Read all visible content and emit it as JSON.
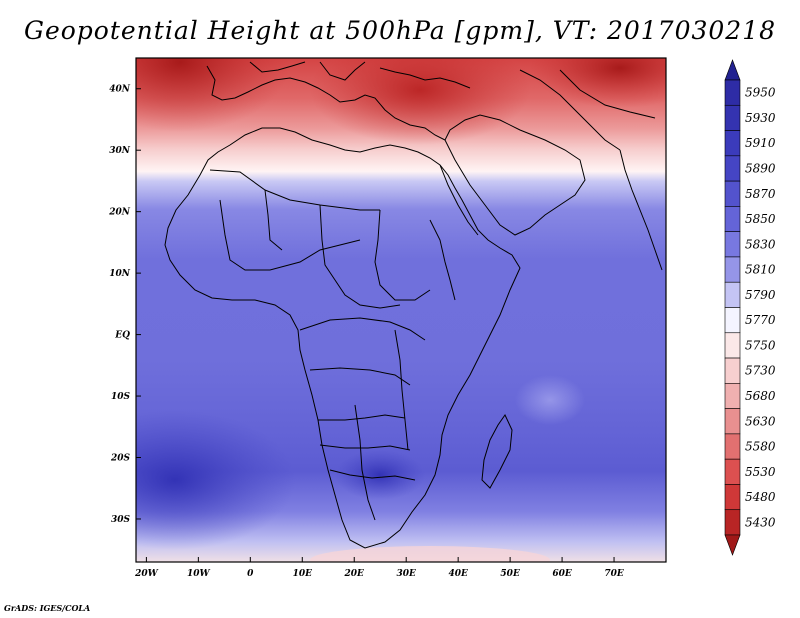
{
  "title": "Geopotential Height at 500hPa [gpm], VT: 2017030218",
  "credit": "GrADS: IGES/COLA",
  "map": {
    "lon_range": [
      -22,
      80
    ],
    "lat_range": [
      -37,
      45
    ],
    "lon_ticks": [
      {
        "value": -20,
        "label": "20W"
      },
      {
        "value": -10,
        "label": "10W"
      },
      {
        "value": 0,
        "label": "0"
      },
      {
        "value": 10,
        "label": "10E"
      },
      {
        "value": 20,
        "label": "20E"
      },
      {
        "value": 30,
        "label": "30E"
      },
      {
        "value": 40,
        "label": "40E"
      },
      {
        "value": 50,
        "label": "50E"
      },
      {
        "value": 60,
        "label": "60E"
      },
      {
        "value": 70,
        "label": "70E"
      }
    ],
    "lat_ticks": [
      {
        "value": 40,
        "label": "40N"
      },
      {
        "value": 30,
        "label": "30N"
      },
      {
        "value": 20,
        "label": "20N"
      },
      {
        "value": 10,
        "label": "10N"
      },
      {
        "value": 0,
        "label": "EQ"
      },
      {
        "value": -10,
        "label": "10S"
      },
      {
        "value": -20,
        "label": "20S"
      },
      {
        "value": -30,
        "label": "30S"
      }
    ]
  },
  "legend": {
    "levels": [
      {
        "label": "5950",
        "color": "#2e2ca6"
      },
      {
        "label": "5930",
        "color": "#3433b0"
      },
      {
        "label": "5910",
        "color": "#3b3bbb"
      },
      {
        "label": "5890",
        "color": "#4545c4"
      },
      {
        "label": "5870",
        "color": "#5353cd"
      },
      {
        "label": "5850",
        "color": "#6464d8"
      },
      {
        "label": "5830",
        "color": "#7878e0"
      },
      {
        "label": "5810",
        "color": "#9595e8"
      },
      {
        "label": "5790",
        "color": "#c4c4f4"
      },
      {
        "label": "5770",
        "color": "#f4f4ff"
      },
      {
        "label": "5750",
        "color": "#fbe8e8"
      },
      {
        "label": "5730",
        "color": "#f7cfcf"
      },
      {
        "label": "5680",
        "color": "#f0b0b0"
      },
      {
        "label": "5630",
        "color": "#e99090"
      },
      {
        "label": "5580",
        "color": "#e27070"
      },
      {
        "label": "5530",
        "color": "#dc5050"
      },
      {
        "label": "5480",
        "color": "#cf3838"
      },
      {
        "label": "5430",
        "color": "#b82525"
      }
    ],
    "top_color": "#222290",
    "bottom_color": "#a01818"
  }
}
